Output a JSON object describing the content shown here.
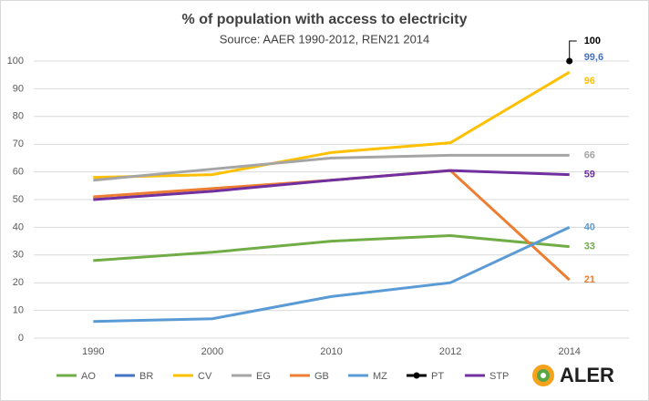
{
  "chart_data": {
    "type": "line",
    "title": "% of population with access to electricity",
    "subtitle": "Source: AAER 1990-2012,  REN21 2014",
    "categories": [
      "1990",
      "2000",
      "2010",
      "2012",
      "2014"
    ],
    "series": [
      {
        "name": "AO",
        "color": "#70ad47",
        "values": [
          28,
          31,
          35,
          37,
          33
        ]
      },
      {
        "name": "BR",
        "color": "#4472c4",
        "values": [
          null,
          null,
          null,
          null,
          99.6
        ],
        "value_labels": [
          null,
          null,
          null,
          null,
          "99,6"
        ]
      },
      {
        "name": "CV",
        "color": "#ffc000",
        "values": [
          58,
          59,
          67,
          70.5,
          96
        ]
      },
      {
        "name": "EG",
        "color": "#a5a5a5",
        "values": [
          57,
          61,
          65,
          66,
          66
        ]
      },
      {
        "name": "GB",
        "color": "#ed7d31",
        "values": [
          51,
          54,
          57,
          60.5,
          21
        ]
      },
      {
        "name": "MZ",
        "color": "#5b9bd5",
        "values": [
          6,
          7,
          15,
          20,
          40
        ]
      },
      {
        "name": "PT",
        "color": "#000000",
        "values": [
          null,
          null,
          null,
          null,
          100
        ],
        "marker": true
      },
      {
        "name": "STP",
        "color": "#7030a0",
        "values": [
          50,
          53,
          57,
          60.5,
          59
        ]
      }
    ],
    "ylim": [
      0,
      100
    ],
    "yticks": [
      0,
      10,
      20,
      30,
      40,
      50,
      60,
      70,
      80,
      90,
      100
    ],
    "grid": true,
    "legend": "bottom",
    "logo": "ALER"
  }
}
